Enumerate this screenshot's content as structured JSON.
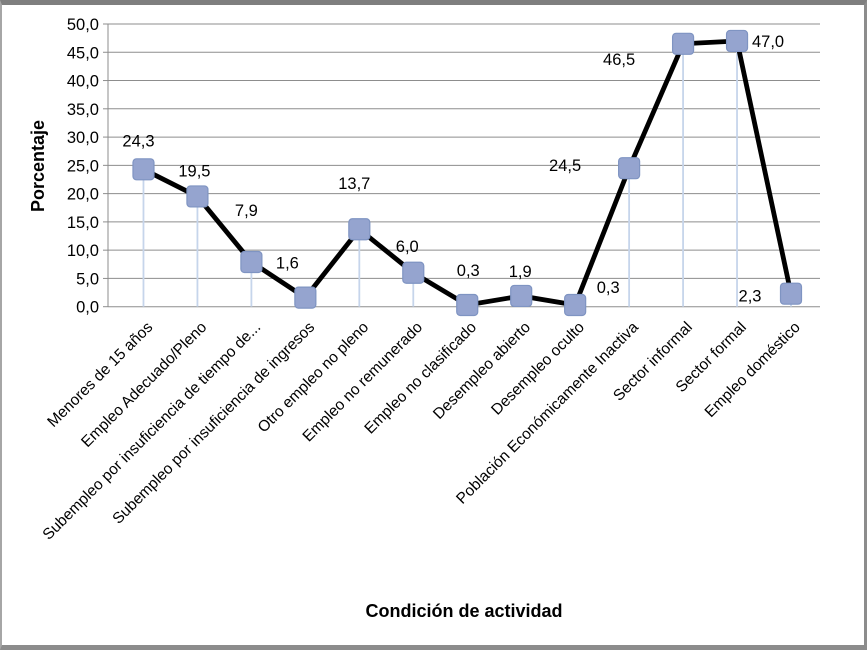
{
  "chart_data": {
    "type": "line",
    "title": "",
    "xlabel": "Condición de actividad",
    "ylabel": "Porcentaje",
    "ylim": [
      0,
      50
    ],
    "ytick_step": 5,
    "grid": true,
    "legend_position": "none",
    "categories": [
      "Menores de 15 años",
      "Empleo Adecuado/Pleno",
      "Subempleo por insuficiencia de tiempo de...",
      "Subempleo por insuficiencia de ingresos",
      "Otro empleo no pleno",
      "Empleo no remunerado",
      "Empleo no clasificado",
      "Desempleo abierto",
      "Desempleo oculto",
      "Población Económicamente Inactiva",
      "Sector informal",
      "Sector formal",
      "Empleo doméstico"
    ],
    "values": [
      24.3,
      19.5,
      7.9,
      1.6,
      13.7,
      6.0,
      0.3,
      1.9,
      0.3,
      24.5,
      46.5,
      47.0,
      2.3
    ],
    "value_labels": [
      "24,3",
      "19,5",
      "7,9",
      "1,6",
      "13,7",
      "6,0",
      "0,3",
      "1,9",
      "0,3",
      "24,5",
      "46,5",
      "47,0",
      "2,3"
    ],
    "ytick_labels": [
      "0,0",
      "5,0",
      "10,0",
      "15,0",
      "20,0",
      "25,0",
      "30,0",
      "35,0",
      "40,0",
      "45,0",
      "50,0"
    ],
    "colors": {
      "line": "#000000",
      "marker_fill": "#95a4cf",
      "marker_border": "#7f94c2",
      "dropline": "#c6d5eb",
      "gridline": "#8d8d8d",
      "axis": "#8d8d8d",
      "text": "#000000",
      "frame_border": "#7f7f7f"
    }
  }
}
